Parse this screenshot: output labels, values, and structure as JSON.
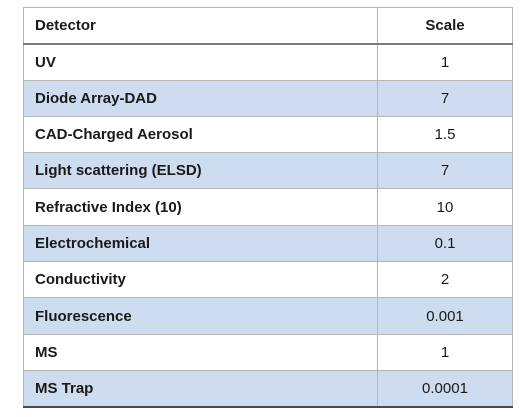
{
  "table": {
    "headers": [
      "Detector",
      "Scale"
    ],
    "rows": [
      {
        "detector": "UV",
        "scale": "1"
      },
      {
        "detector": "Diode Array-DAD",
        "scale": "7"
      },
      {
        "detector": "CAD-Charged Aerosol",
        "scale": "1.5"
      },
      {
        "detector": "Light scattering (ELSD)",
        "scale": "7"
      },
      {
        "detector": "Refractive Index (10)",
        "scale": "10"
      },
      {
        "detector": "Electrochemical",
        "scale": "0.1"
      },
      {
        "detector": "Conductivity",
        "scale": "2"
      },
      {
        "detector": "Fluorescence",
        "scale": "0.001"
      },
      {
        "detector": "MS",
        "scale": "1"
      },
      {
        "detector": "MS Trap",
        "scale": "0.0001"
      }
    ]
  },
  "colors": {
    "row_stripe": "#cddcef",
    "row_plain": "#ffffff",
    "border": "#b5b5b5"
  }
}
